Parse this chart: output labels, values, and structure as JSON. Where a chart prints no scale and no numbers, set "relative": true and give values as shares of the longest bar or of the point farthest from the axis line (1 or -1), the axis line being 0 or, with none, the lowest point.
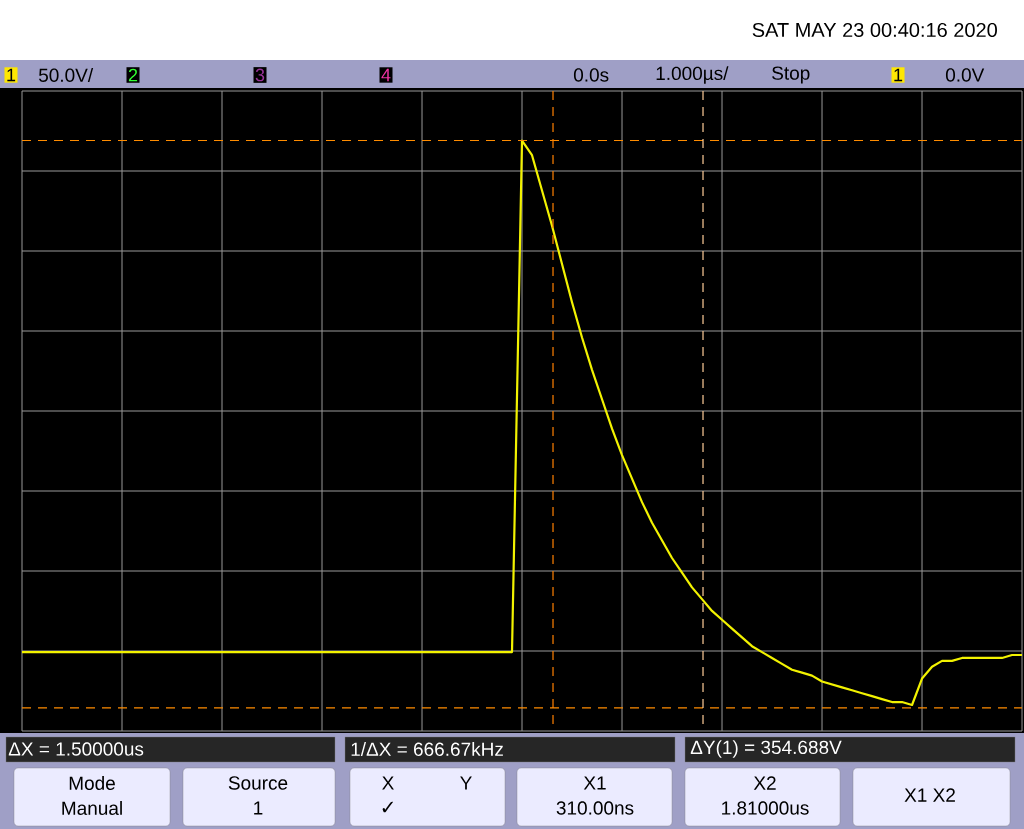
{
  "chart_data": {
    "type": "line",
    "relative": true,
    "categories": [
      null,
      null,
      null,
      null,
      null,
      null,
      null,
      null,
      null,
      null,
      null,
      null,
      null,
      null,
      null,
      null,
      null,
      null,
      null,
      null,
      null,
      null,
      null,
      null,
      null,
      null,
      null,
      null,
      null,
      null,
      null,
      null,
      null,
      null,
      null,
      null,
      null,
      null,
      null,
      null,
      null,
      null,
      null,
      null,
      null,
      null,
      null,
      null,
      null,
      null,
      null,
      null,
      null,
      null,
      null,
      null,
      null,
      null,
      null,
      null,
      null,
      null,
      null,
      null,
      null,
      null,
      null,
      null,
      null,
      null,
      null,
      null,
      null,
      null,
      null,
      null,
      null,
      null,
      null,
      null,
      null,
      null,
      null,
      null,
      null,
      null,
      null,
      null,
      null,
      null,
      null,
      null,
      null,
      null,
      null,
      null,
      null,
      null,
      null,
      null,
      null
    ],
    "series": [
      {
        "color": "#f2f200",
        "values": [
          -0.82,
          -0.82,
          -0.82,
          -0.82,
          -0.82,
          -0.82,
          -0.82,
          -0.82,
          -0.82,
          -0.82,
          -0.82,
          -0.82,
          -0.82,
          -0.82,
          -0.82,
          -0.82,
          -0.82,
          -0.82,
          -0.82,
          -0.82,
          -0.82,
          -0.82,
          -0.82,
          -0.82,
          -0.82,
          -0.82,
          -0.82,
          -0.82,
          -0.82,
          -0.82,
          -0.82,
          -0.82,
          -0.82,
          -0.82,
          -0.82,
          -0.82,
          -0.82,
          -0.82,
          -0.82,
          -0.82,
          -0.82,
          -0.82,
          -0.82,
          -0.82,
          -0.82,
          -0.82,
          -0.82,
          -0.82,
          -0.82,
          -0.82,
          0.92,
          0.87,
          0.75,
          0.63,
          0.5,
          0.37,
          0.25,
          0.14,
          0.04,
          -0.06,
          -0.15,
          -0.23,
          -0.31,
          -0.38,
          -0.44,
          -0.5,
          -0.55,
          -0.6,
          -0.64,
          -0.68,
          -0.71,
          -0.74,
          -0.77,
          -0.8,
          -0.82,
          -0.84,
          -0.86,
          -0.88,
          -0.89,
          -0.9,
          -0.92,
          -0.93,
          -0.94,
          -0.95,
          -0.96,
          -0.97,
          -0.98,
          -0.99,
          -0.99,
          -1.0,
          -0.91,
          -0.87,
          -0.85,
          -0.85,
          -0.84,
          -0.84,
          -0.84,
          -0.84,
          -0.84,
          -0.83,
          -0.83
        ]
      }
    ],
    "grid": true,
    "tick_labels": false,
    "marker": "none",
    "line_style": "solid",
    "ref_lines": [
      {
        "axis": "y",
        "value": 0.92,
        "color": "#ff8c00",
        "line_style": "dashed"
      },
      {
        "axis": "y",
        "value": -1.01,
        "color": "#ff8c00",
        "line_style": "dashed"
      }
    ],
    "annotations": [
      "SAT MAY 23 00:40:16 2020",
      "1",
      "50.0V/",
      "2",
      "3",
      "4",
      "0.0s",
      "1.000µs/",
      "Stop",
      "1",
      "0.0V",
      "ΔX = 1.50000us",
      "1/ΔX = 666.67kHz",
      "ΔY(1) = 354.688V",
      "Mode",
      "Manual",
      "Source",
      "1",
      "X",
      "Y",
      "✓",
      "X1",
      "310.00ns",
      "X2",
      "1.81000us",
      "X1 X2"
    ]
  }
}
